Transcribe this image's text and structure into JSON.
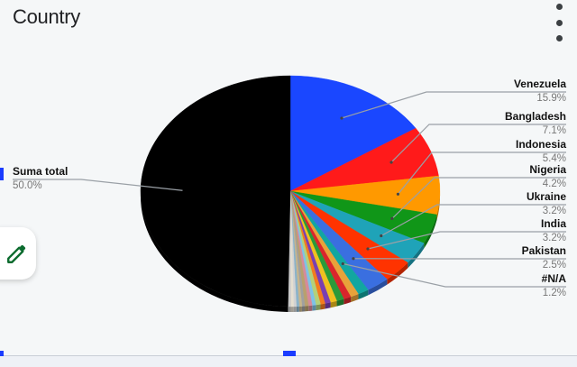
{
  "header": {
    "title": "Country",
    "menu_icon": "more-vert-icon"
  },
  "edit_button": {
    "icon": "pencil-icon",
    "color": "#0b6b2e"
  },
  "chart_data": {
    "type": "pie",
    "title": "Country",
    "slices": [
      {
        "label": "Venezuela",
        "percent_label": "15.9%",
        "value": 15.9,
        "color": "#1a47ff"
      },
      {
        "label": "Bangladesh",
        "percent_label": "7.1%",
        "value": 7.1,
        "color": "#ff1a1a"
      },
      {
        "label": "Indonesia",
        "percent_label": "5.4%",
        "value": 5.4,
        "color": "#ff9900"
      },
      {
        "label": "Nigeria",
        "percent_label": "4.2%",
        "value": 4.2,
        "color": "#109618"
      },
      {
        "label": "Ukraine",
        "percent_label": "3.2%",
        "value": 3.2,
        "color": "#1fa3b8"
      },
      {
        "label": "India",
        "percent_label": "3.2%",
        "value": 3.2,
        "color": "#ff3300"
      },
      {
        "label": "Pakistan",
        "percent_label": "2.5%",
        "value": 2.5,
        "color": "#3a6fe0"
      },
      {
        "label": "#N/A",
        "percent_label": "1.2%",
        "value": 1.2,
        "color": "#12a6a0"
      },
      {
        "label": "",
        "value": 0.9,
        "color": "#e8a23a"
      },
      {
        "label": "",
        "value": 0.8,
        "color": "#d9262c"
      },
      {
        "label": "",
        "value": 0.8,
        "color": "#2a9a3a"
      },
      {
        "label": "",
        "value": 0.7,
        "color": "#f0c020"
      },
      {
        "label": "",
        "value": 0.6,
        "color": "#7a3fb0"
      },
      {
        "label": "",
        "value": 0.5,
        "color": "#f37b1d"
      },
      {
        "label": "",
        "value": 0.5,
        "color": "#b3d17a"
      },
      {
        "label": "",
        "value": 0.4,
        "color": "#7ec2e6"
      },
      {
        "label": "",
        "value": 0.4,
        "color": "#d68a9a"
      },
      {
        "label": "",
        "value": 0.4,
        "color": "#b8a06e"
      },
      {
        "label": "",
        "value": 0.3,
        "color": "#a0a0a0"
      },
      {
        "label": "",
        "value": 0.3,
        "color": "#c7b58c"
      },
      {
        "label": "",
        "value": 0.3,
        "color": "#8bb3c9"
      },
      {
        "label": "",
        "value": 0.3,
        "color": "#d2d2d2"
      },
      {
        "label": "",
        "value": 0.3,
        "color": "#e5dfd0"
      },
      {
        "label": "",
        "value": 0.3,
        "color": "#c9c9c9"
      },
      {
        "label": "Suma total",
        "percent_label": "50.0%",
        "value": 50.0,
        "color": "#000000"
      }
    ],
    "legend": "none",
    "label_style": "callout-lines"
  }
}
